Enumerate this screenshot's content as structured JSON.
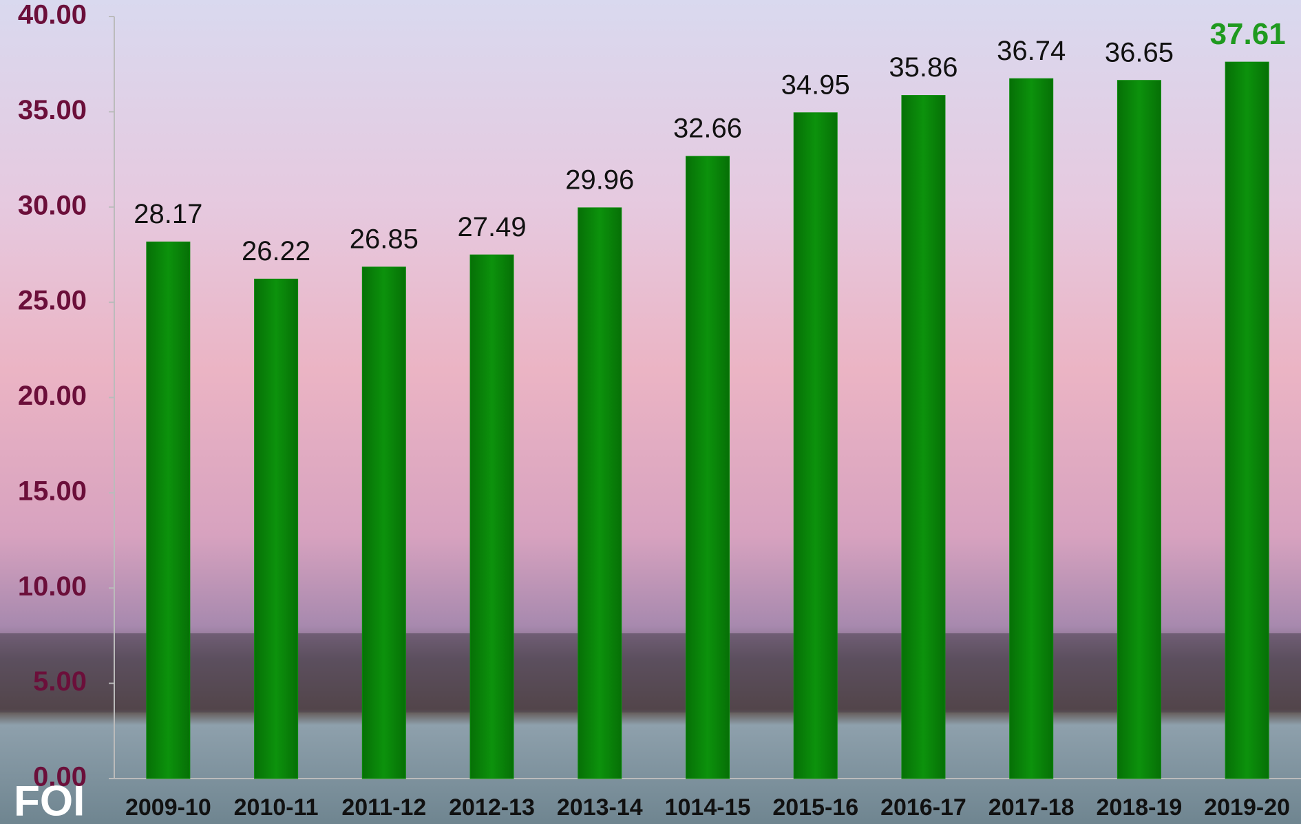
{
  "chart_data": {
    "type": "bar",
    "categories": [
      "2009-10",
      "2010-11",
      "2011-12",
      "2012-13",
      "2013-14",
      "1014-15",
      "2015-16",
      "2016-17",
      "2017-18",
      "2018-19",
      "2019-20"
    ],
    "values": [
      28.17,
      26.22,
      26.85,
      27.49,
      29.96,
      32.66,
      34.95,
      35.86,
      36.74,
      36.65,
      37.61
    ],
    "color": "#0a8a0a",
    "highlight_color": "#1f9a1f",
    "ylim": [
      0,
      40
    ],
    "yticks": [
      {
        "value": 0,
        "label": "0.00"
      },
      {
        "value": 5,
        "label": "5.00"
      },
      {
        "value": 10,
        "label": "10.00"
      },
      {
        "value": 15,
        "label": "15.00"
      },
      {
        "value": 20,
        "label": "20.00"
      },
      {
        "value": 25,
        "label": "25.00"
      },
      {
        "value": 30,
        "label": "30.00"
      },
      {
        "value": 35,
        "label": "35.00"
      },
      {
        "value": 40,
        "label": "40.00"
      }
    ],
    "grid": false
  },
  "logo": "FOI"
}
